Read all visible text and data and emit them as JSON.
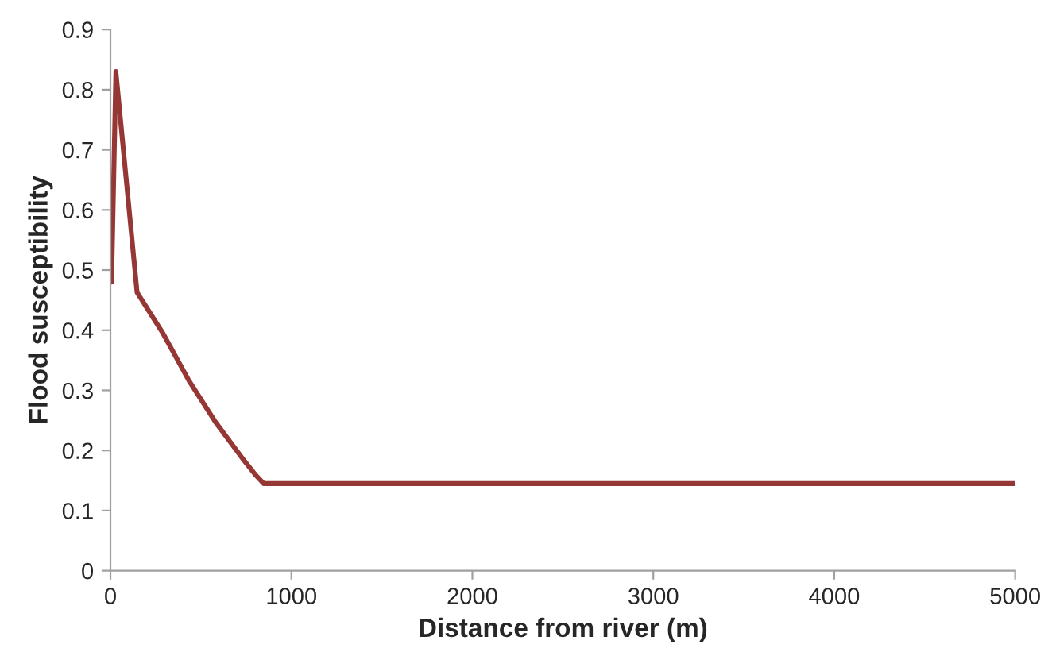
{
  "chart_data": {
    "type": "line",
    "xlabel": "Distance from river (m)",
    "ylabel": "Flood susceptibility",
    "x": [
      0,
      6,
      30,
      147,
      286,
      434,
      581,
      729,
      800,
      847,
      900,
      5000
    ],
    "series": [
      {
        "color": "#953735",
        "values": [
          0.48,
          0.48,
          0.83,
          0.463,
          0.397,
          0.316,
          0.247,
          0.187,
          0.16,
          0.145,
          0.145,
          0.145
        ]
      }
    ],
    "xlim": [
      0,
      5000
    ],
    "xticks": [
      0,
      1000,
      2000,
      3000,
      4000,
      5000
    ],
    "ylim": [
      0,
      0.9
    ],
    "yticks": [
      0,
      0.1,
      0.2,
      0.3,
      0.4,
      0.5,
      0.6,
      0.7,
      0.8,
      0.9
    ],
    "grid": false,
    "marker": "none",
    "line_style": "solid"
  }
}
